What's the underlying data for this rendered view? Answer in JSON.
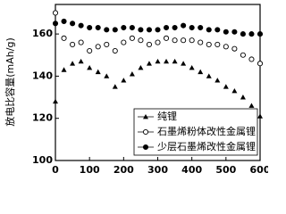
{
  "chart_data": {
    "type": "scatter",
    "y_label": "放电比容量(mAh/g)",
    "x": [
      0,
      25,
      50,
      75,
      100,
      125,
      150,
      175,
      200,
      225,
      250,
      275,
      300,
      325,
      350,
      375,
      400,
      425,
      450,
      475,
      500,
      525,
      550,
      575,
      600
    ],
    "series": [
      {
        "name": "纯锂",
        "color": "#000000",
        "marker": "triangle",
        "values": [
          128,
          143,
          146,
          147,
          144,
          142,
          140,
          135,
          138,
          141,
          144,
          146,
          147,
          147,
          147,
          146,
          144,
          142,
          140,
          138,
          135,
          133,
          130,
          126,
          121
        ]
      },
      {
        "name": "石墨烯粉体改性金属锂",
        "color": "#000000",
        "marker": "open-circle",
        "values": [
          170,
          158,
          155,
          156,
          152,
          154,
          155,
          152,
          156,
          158,
          157,
          155,
          156,
          158,
          157,
          157,
          157,
          156,
          155,
          155,
          154,
          153,
          150,
          148,
          146
        ]
      },
      {
        "name": "少层石墨烯改性金属锂",
        "color": "#000000",
        "marker": "circle",
        "values": [
          165,
          166,
          165,
          164,
          163,
          163,
          162,
          162,
          163,
          163,
          162,
          162,
          162,
          163,
          163,
          164,
          163,
          163,
          162,
          162,
          161,
          161,
          160,
          160,
          160
        ]
      }
    ],
    "xlim": [
      0,
      600
    ],
    "xticks": [
      0,
      100,
      200,
      300,
      400,
      500,
      600
    ],
    "ylim": [
      100,
      174
    ],
    "yticks": [
      100,
      120,
      140,
      160
    ]
  }
}
